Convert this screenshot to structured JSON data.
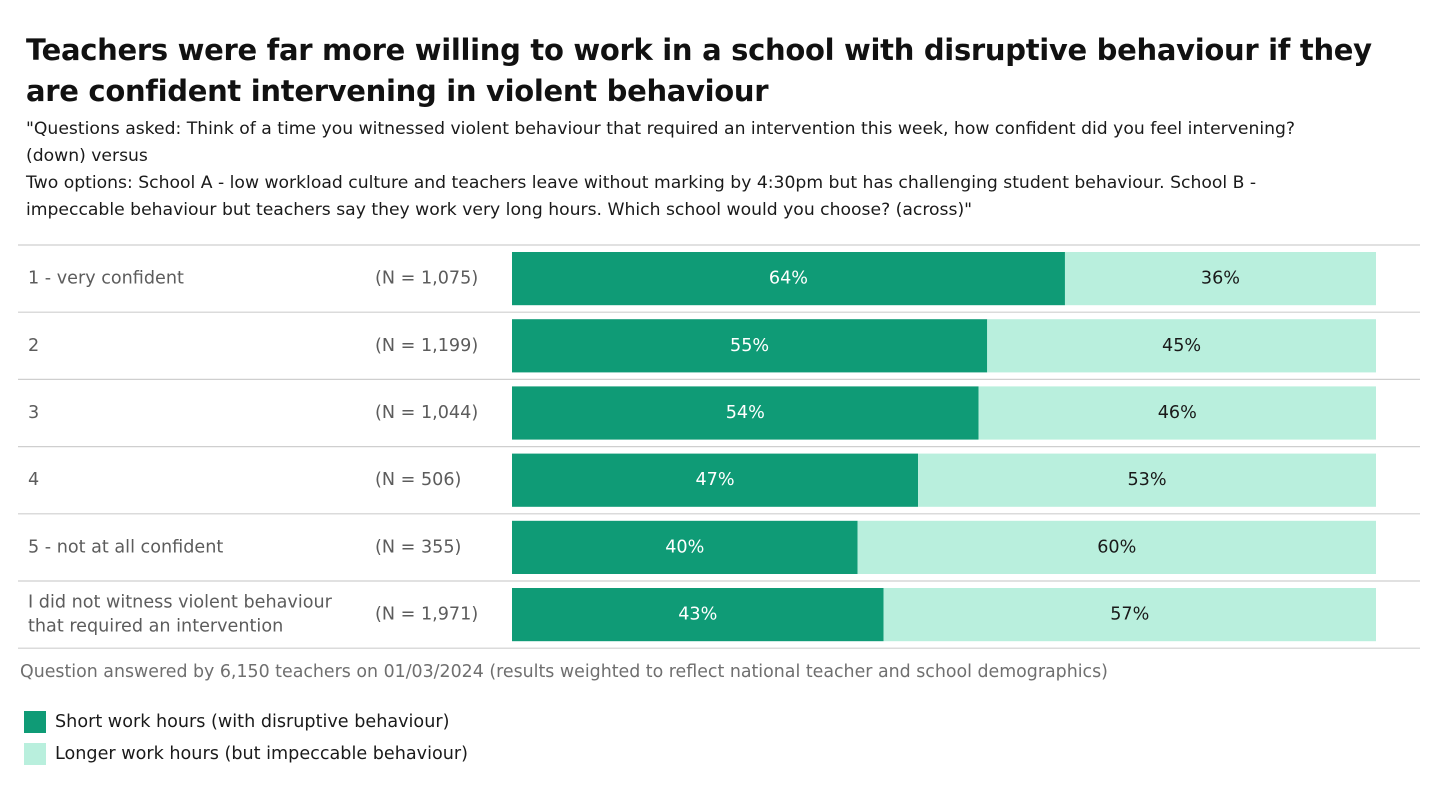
{
  "title": "Teachers were far more willing to work in a school with disruptive behaviour if they are confident intervening in violent behaviour",
  "subtitle_lines": [
    "\"Questions asked: Think of a time you witnessed violent behaviour that required an intervention this week, how confident did you feel intervening?",
    "(down) versus",
    "Two options: School A - low workload culture and teachers leave without marking by 4:30pm but has challenging student behaviour. School B -",
    "impeccable behaviour but teachers say they work very long hours. Which school would you choose? (across)\""
  ],
  "note": "Question answered by 6,150 teachers on 01/03/2024 (results weighted to reflect national teacher and school demographics)",
  "colors": {
    "short": "#0f9b76",
    "longer": "#b9efdd",
    "short_text": "#ffffff",
    "longer_text": "#1a1a1a",
    "row_label": "#5c5c5c",
    "grid": "#cfcfcf"
  },
  "chart_data": {
    "type": "bar",
    "orientation": "horizontal",
    "stacked": true,
    "percent_stacked": true,
    "categories": [
      {
        "label": [
          "1 - very confident"
        ],
        "n": "(N = 1,075)"
      },
      {
        "label": [
          "2"
        ],
        "n": "(N = 1,199)"
      },
      {
        "label": [
          "3"
        ],
        "n": "(N = 1,044)"
      },
      {
        "label": [
          "4"
        ],
        "n": "(N = 506)"
      },
      {
        "label": [
          "5 - not at all confident"
        ],
        "n": "(N = 355)"
      },
      {
        "label": [
          "I did not witness violent behaviour",
          "that required an intervention"
        ],
        "n": "(N = 1,971)"
      }
    ],
    "series": [
      {
        "name": "Short work hours (with disruptive behaviour)",
        "color": "#0f9b76",
        "values": [
          64,
          55,
          54,
          47,
          40,
          43
        ]
      },
      {
        "name": "Longer work hours (but impeccable behaviour)",
        "color": "#b9efdd",
        "values": [
          36,
          45,
          46,
          53,
          60,
          57
        ]
      }
    ],
    "value_suffix": "%",
    "xlim": [
      0,
      100
    ],
    "legend_position": "bottom-left"
  }
}
